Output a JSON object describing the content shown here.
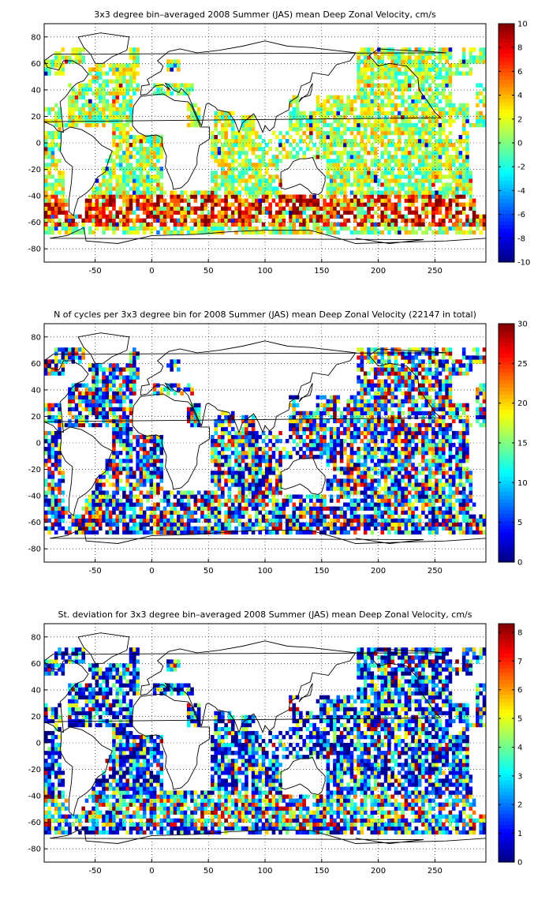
{
  "chart_data": [
    {
      "type": "heatmap",
      "title": "3x3 degree bin–averaged 2008 Summer (JAS) mean Deep Zonal Velocity, cm/s",
      "x_ticks": [
        -50,
        0,
        50,
        100,
        150,
        200,
        250
      ],
      "y_ticks": [
        80,
        60,
        40,
        20,
        0,
        -20,
        -40,
        -60,
        -80
      ],
      "xlim": [
        -95,
        295
      ],
      "ylim": [
        -90,
        90
      ],
      "grid": true,
      "colorbar": {
        "min": -10,
        "max": 10,
        "ticks": [
          10,
          8,
          6,
          4,
          2,
          0,
          -2,
          -4,
          -6,
          -8,
          -10
        ]
      },
      "colormap": "jet",
      "bin_size_deg": 3
    },
    {
      "type": "heatmap",
      "title": "N of cycles per 3x3 degree bin for 2008 Summer (JAS) mean Deep Zonal Velocity (22147 in total)",
      "x_ticks": [
        -50,
        0,
        50,
        100,
        150,
        200,
        250
      ],
      "y_ticks": [
        80,
        60,
        40,
        20,
        0,
        -20,
        -40,
        -60,
        -80
      ],
      "xlim": [
        -95,
        295
      ],
      "ylim": [
        -90,
        90
      ],
      "grid": true,
      "colorbar": {
        "min": 0,
        "max": 30,
        "ticks": [
          30,
          25,
          20,
          15,
          10,
          5,
          0
        ]
      },
      "colormap": "jet",
      "bin_size_deg": 3
    },
    {
      "type": "heatmap",
      "title": "St. deviation for 3x3 degree bin–averaged 2008 Summer (JAS) mean Deep Zonal Velocity, cm/s",
      "x_ticks": [
        -50,
        0,
        50,
        100,
        150,
        200,
        250
      ],
      "y_ticks": [
        80,
        60,
        40,
        20,
        0,
        -20,
        -40,
        -60,
        -80
      ],
      "xlim": [
        -95,
        295
      ],
      "ylim": [
        -90,
        90
      ],
      "grid": true,
      "colorbar": {
        "min": 0,
        "max": 8.3,
        "ticks": [
          8,
          7,
          6,
          5,
          4,
          3,
          2,
          1,
          0
        ]
      },
      "colormap": "jet",
      "bin_size_deg": 3
    }
  ]
}
